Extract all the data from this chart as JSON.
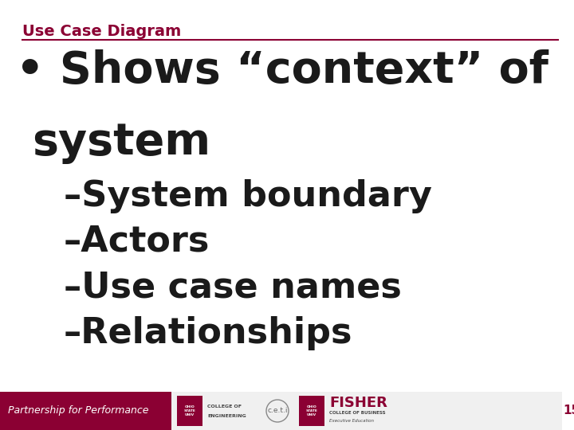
{
  "title": "Use Case Diagram",
  "title_color": "#8B0033",
  "title_fontsize": 14,
  "separator_color": "#8B0033",
  "bg_color": "#FFFFFF",
  "bullet_line1": "• Shows “context” of",
  "bullet_line2": "  system",
  "sub_items": [
    "–System boundary",
    "–Actors",
    "–Use case names",
    "–Relationships"
  ],
  "bullet_fontsize": 40,
  "sub_fontsize": 32,
  "text_color": "#1a1a1a",
  "footer_left_text": "Partnership for Performance",
  "footer_left_bg": "#8B0033",
  "footer_left_color": "#FFFFFF",
  "footer_page_number": "15",
  "footer_page_color": "#8B0033",
  "footer_fontsize": 9,
  "ohio_red": "#8B0033"
}
